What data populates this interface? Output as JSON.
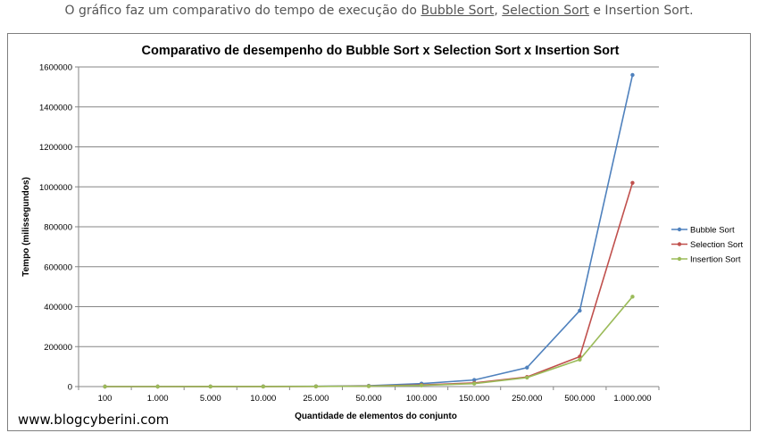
{
  "caption": {
    "prefix": "O gráfico faz um comparativo do tempo de execução do ",
    "link_bubble": "Bubble Sort",
    "sep1": ", ",
    "link_selection": "Selection Sort",
    "suffix": " e Insertion Sort."
  },
  "watermark": "www.blogcyberini.com",
  "colors": {
    "bubble": "#4f81bd",
    "selection": "#c0504d",
    "insertion": "#9bbb59",
    "grid": "#868686"
  },
  "chart_data": {
    "type": "line",
    "title": "Comparativo de desempenho do Bubble Sort x Selection Sort x Insertion Sort",
    "xlabel": "Quantidade de elementos do conjunto",
    "ylabel": "Tempo (milissegundos)",
    "categories": [
      "100",
      "1.000",
      "5.000",
      "10.000",
      "25.000",
      "50.000",
      "100.000",
      "150.000",
      "250.000",
      "500.000",
      "1.000.000"
    ],
    "ylim": [
      0,
      1600000
    ],
    "yticks": [
      "0",
      "200000",
      "400000",
      "600000",
      "800000",
      "1000000",
      "1200000",
      "1400000",
      "1600000"
    ],
    "grid": true,
    "legend_position": "right",
    "series": [
      {
        "name": "Bubble Sort",
        "values": [
          0,
          0,
          200,
          800,
          1500,
          4000,
          15000,
          33000,
          95000,
          380000,
          1560000
        ]
      },
      {
        "name": "Selection Sort",
        "values": [
          0,
          0,
          100,
          500,
          1000,
          2500,
          8000,
          18000,
          48000,
          150000,
          1020000
        ]
      },
      {
        "name": "Insertion Sort",
        "values": [
          0,
          0,
          100,
          400,
          900,
          2000,
          6000,
          15000,
          45000,
          135000,
          450000
        ]
      }
    ]
  }
}
